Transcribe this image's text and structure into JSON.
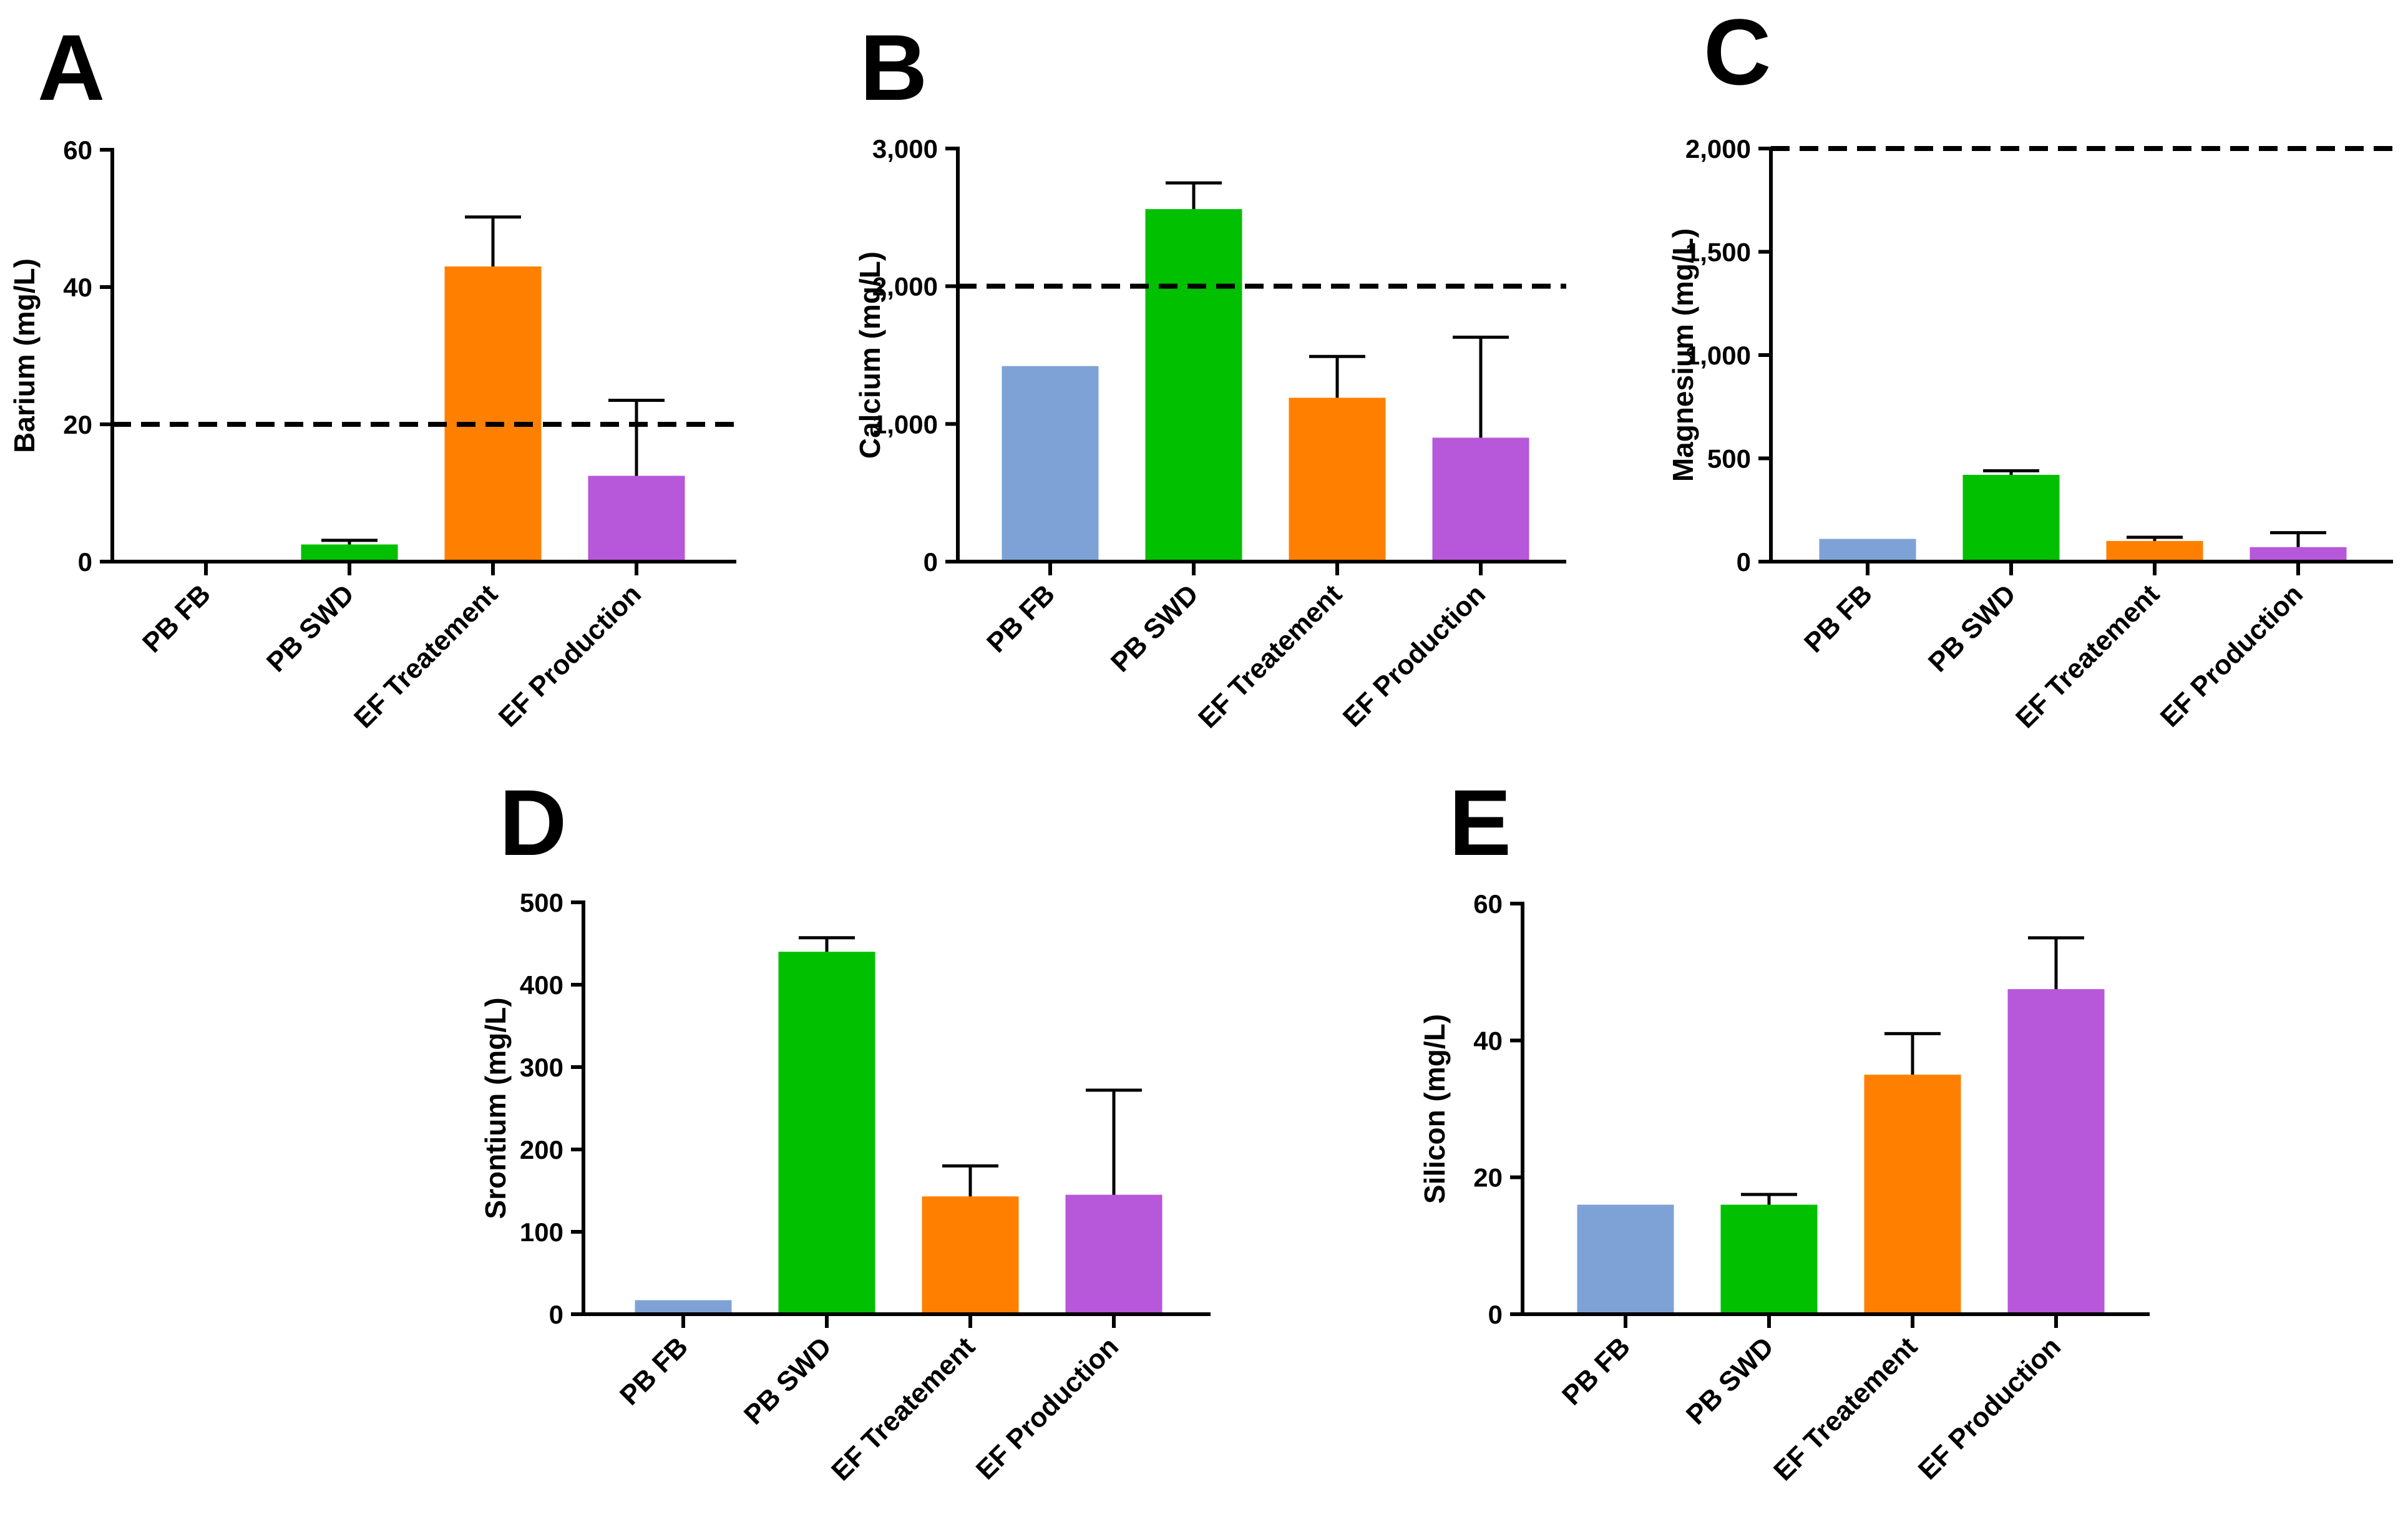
{
  "figure": {
    "categories": [
      "PB FB",
      "PB SWD",
      "EF Treatement",
      "EF Production"
    ],
    "colors": {
      "PB FB": "#7ea2d6",
      "PB SWD": "#00c000",
      "EF Treatement": "#ff8000",
      "EF Production": "#b757d9"
    }
  },
  "chart_data": [
    {
      "type": "bar",
      "panel": "A",
      "title": "",
      "ylabel": "Barium (mg/L)",
      "xlabel": "",
      "categories": [
        "PB FB",
        "PB SWD",
        "EF Treatement",
        "EF Production"
      ],
      "values": [
        0,
        2.5,
        43,
        12.5
      ],
      "errors": [
        0,
        0.6,
        7.2,
        11
      ],
      "ylim": [
        0,
        60
      ],
      "yticks": [
        0,
        20,
        40,
        60
      ],
      "ytick_labels": [
        "0",
        "20",
        "40",
        "60"
      ],
      "reference_line": 20,
      "grid": false
    },
    {
      "type": "bar",
      "panel": "B",
      "title": "",
      "ylabel": "Calcium (mg/L)",
      "xlabel": "",
      "categories": [
        "PB FB",
        "PB SWD",
        "EF Treatement",
        "EF Production"
      ],
      "values": [
        1420,
        2560,
        1190,
        900
      ],
      "errors": [
        0,
        190,
        300,
        730
      ],
      "ylim": [
        0,
        3000
      ],
      "yticks": [
        0,
        1000,
        2000,
        3000
      ],
      "ytick_labels": [
        "0",
        "1,000",
        "2,000",
        "3,000"
      ],
      "reference_line": 2000,
      "grid": false
    },
    {
      "type": "bar",
      "panel": "C",
      "title": "",
      "ylabel": "Magnesium (mg/L)",
      "xlabel": "",
      "categories": [
        "PB FB",
        "PB SWD",
        "EF Treatement",
        "EF Production"
      ],
      "values": [
        110,
        420,
        100,
        70
      ],
      "errors": [
        0,
        20,
        18,
        70
      ],
      "ylim": [
        0,
        2000
      ],
      "yticks": [
        0,
        500,
        1000,
        1500,
        2000
      ],
      "ytick_labels": [
        "0",
        "500",
        "1,000",
        "1,500",
        "2,000"
      ],
      "reference_line": 2000,
      "grid": false
    },
    {
      "type": "bar",
      "panel": "D",
      "title": "",
      "ylabel": "Srontium (mg/L)",
      "xlabel": "",
      "categories": [
        "PB FB",
        "PB SWD",
        "EF Treatement",
        "EF Production"
      ],
      "values": [
        17,
        440,
        143,
        145
      ],
      "errors": [
        0,
        17,
        37,
        127
      ],
      "ylim": [
        0,
        500
      ],
      "yticks": [
        0,
        100,
        200,
        300,
        400,
        500
      ],
      "ytick_labels": [
        "0",
        "100",
        "200",
        "300",
        "400",
        "500"
      ],
      "reference_line": null,
      "grid": false
    },
    {
      "type": "bar",
      "panel": "E",
      "title": "",
      "ylabel": "Silicon (mg/L)",
      "xlabel": "",
      "categories": [
        "PB FB",
        "PB SWD",
        "EF Treatement",
        "EF Production"
      ],
      "values": [
        16,
        16,
        35,
        47.5
      ],
      "errors": [
        0,
        1.5,
        6,
        7.5
      ],
      "ylim": [
        0,
        60
      ],
      "yticks": [
        0,
        20,
        40,
        60
      ],
      "ytick_labels": [
        "0",
        "20",
        "40",
        "60"
      ],
      "reference_line": null,
      "grid": false
    }
  ]
}
